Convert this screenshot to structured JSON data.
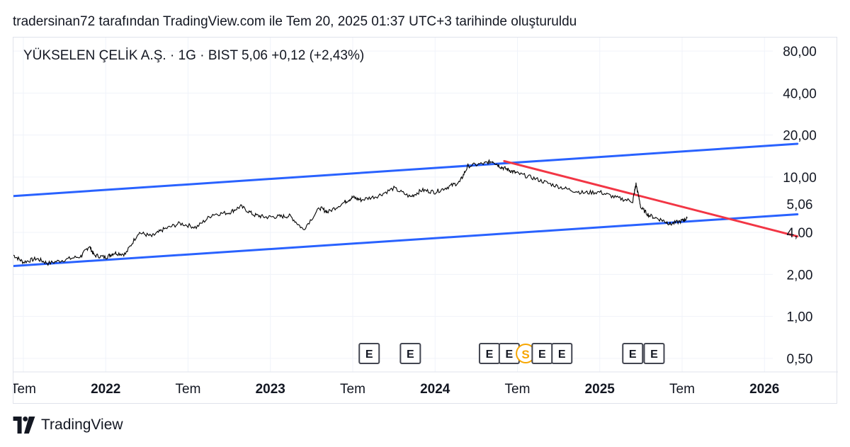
{
  "header": {
    "attribution": "tradersinan72 tarafından TradingView.com ile Tem 20, 2025 01:37 UTC+3 tarihinde oluşturuldu"
  },
  "footer": {
    "brand": "TradingView",
    "logo_icon": "tradingview-logo-icon"
  },
  "chart_data": {
    "type": "line",
    "title": "YÜKSELEN ÇELİK A.Ş. · 1G · BIST  5,06  +0,12 (+2,43%)",
    "scale": "log",
    "ylim": [
      0.4,
      100
    ],
    "xlim": [
      2021.44,
      2026.3
    ],
    "y_ticks": [
      {
        "value": 80,
        "label": "80,00"
      },
      {
        "value": 40,
        "label": "40,00"
      },
      {
        "value": 20,
        "label": "20,00"
      },
      {
        "value": 10,
        "label": "10,00"
      },
      {
        "value": 4,
        "label": "4,00"
      },
      {
        "value": 2,
        "label": "2,00"
      },
      {
        "value": 1,
        "label": "1,00"
      },
      {
        "value": 0.5,
        "label": "0,50"
      }
    ],
    "last_price_label": {
      "value": 5.06,
      "label": "5,06"
    },
    "x_ticks": [
      {
        "t": 2021.5,
        "label": "Tem",
        "bold": false
      },
      {
        "t": 2022.0,
        "label": "2022",
        "bold": true
      },
      {
        "t": 2022.5,
        "label": "Tem",
        "bold": false
      },
      {
        "t": 2023.0,
        "label": "2023",
        "bold": true
      },
      {
        "t": 2023.5,
        "label": "Tem",
        "bold": false
      },
      {
        "t": 2024.0,
        "label": "2024",
        "bold": true
      },
      {
        "t": 2024.5,
        "label": "Tem",
        "bold": false
      },
      {
        "t": 2025.0,
        "label": "2025",
        "bold": true
      },
      {
        "t": 2025.5,
        "label": "Tem",
        "bold": false
      },
      {
        "t": 2026.0,
        "label": "2026",
        "bold": true
      }
    ],
    "series": [
      {
        "name": "YKSLN",
        "color": "#000000",
        "x": [
          2021.44,
          2021.5,
          2021.58,
          2021.65,
          2021.75,
          2021.85,
          2021.9,
          2021.93,
          2022.0,
          2022.05,
          2022.12,
          2022.2,
          2022.28,
          2022.35,
          2022.45,
          2022.55,
          2022.65,
          2022.75,
          2022.82,
          2022.9,
          2022.97,
          2023.05,
          2023.12,
          2023.2,
          2023.3,
          2023.35,
          2023.45,
          2023.5,
          2023.55,
          2023.65,
          2023.75,
          2023.85,
          2023.92,
          2024.0,
          2024.08,
          2024.15,
          2024.2,
          2024.3,
          2024.35,
          2024.4,
          2024.45,
          2024.5,
          2024.6,
          2024.7,
          2024.8,
          2024.9,
          2025.0,
          2025.1,
          2025.2,
          2025.22,
          2025.25,
          2025.3,
          2025.38,
          2025.43,
          2025.5,
          2025.53
        ],
        "values": [
          2.75,
          2.45,
          2.6,
          2.4,
          2.55,
          2.7,
          3.2,
          2.75,
          2.65,
          2.85,
          2.8,
          4.0,
          3.75,
          4.2,
          4.65,
          4.35,
          5.4,
          5.55,
          6.15,
          5.35,
          5.15,
          5.2,
          5.25,
          4.2,
          6.0,
          5.6,
          6.6,
          7.15,
          6.85,
          7.3,
          8.3,
          7.2,
          8.05,
          7.8,
          8.5,
          9.2,
          12.0,
          12.5,
          13.0,
          11.8,
          11.2,
          10.6,
          9.8,
          8.9,
          8.2,
          7.7,
          7.8,
          7.1,
          6.7,
          8.9,
          6.0,
          5.3,
          4.9,
          4.6,
          4.85,
          5.06
        ]
      }
    ],
    "trendlines": [
      {
        "name": "upper-channel",
        "color": "#2962ff",
        "from": {
          "t": 2021.44,
          "v": 7.3
        },
        "to": {
          "t": 2026.2,
          "v": 17.3
        }
      },
      {
        "name": "lower-channel",
        "color": "#2962ff",
        "from": {
          "t": 2021.44,
          "v": 2.3
        },
        "to": {
          "t": 2026.2,
          "v": 5.4
        }
      },
      {
        "name": "resistance",
        "color": "#f23645",
        "from": {
          "t": 2024.42,
          "v": 13.0
        },
        "to": {
          "t": 2026.2,
          "v": 3.75
        }
      }
    ],
    "events": [
      {
        "t": 2023.6,
        "label": "E",
        "type": "earnings"
      },
      {
        "t": 2023.85,
        "label": "E",
        "type": "earnings"
      },
      {
        "t": 2024.33,
        "label": "E",
        "type": "earnings"
      },
      {
        "t": 2024.45,
        "label": "E",
        "type": "earnings"
      },
      {
        "t": 2024.55,
        "label": "S",
        "type": "split"
      },
      {
        "t": 2024.65,
        "label": "E",
        "type": "earnings"
      },
      {
        "t": 2024.77,
        "label": "E",
        "type": "earnings"
      },
      {
        "t": 2025.2,
        "label": "E",
        "type": "earnings"
      },
      {
        "t": 2025.33,
        "label": "E",
        "type": "earnings"
      }
    ],
    "colors": {
      "grid": "#f0f3fa",
      "price_label_bg": "#000000",
      "price_label_text": "#ffffff",
      "split": "#f7a600",
      "event_border": "#434651"
    }
  }
}
